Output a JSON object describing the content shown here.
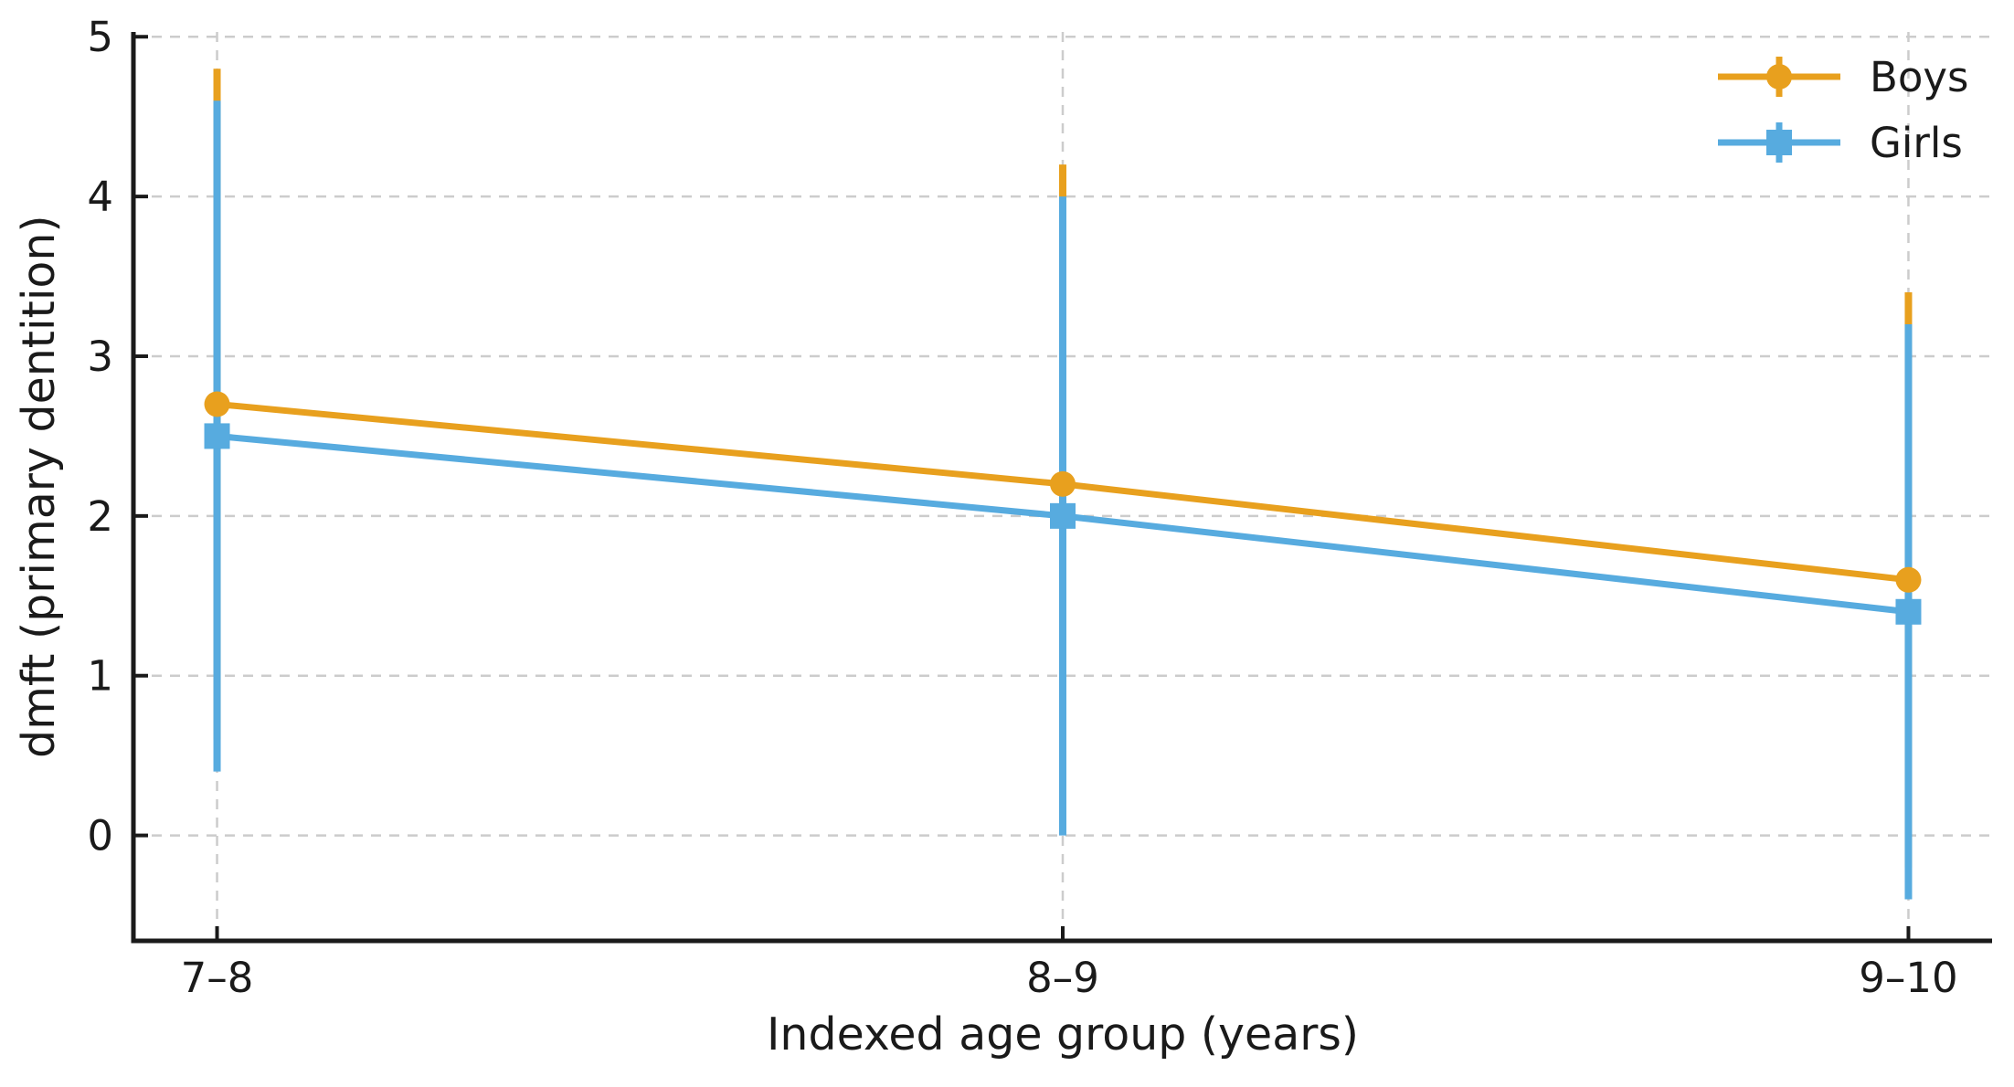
{
  "chart_data": {
    "type": "line",
    "title": "",
    "xlabel": "Indexed age group (years)",
    "ylabel": "dmft (primary dentition)",
    "categories": [
      "7–8",
      "8–9",
      "9–10"
    ],
    "y_ticks": [
      0,
      1,
      2,
      3,
      4,
      5
    ],
    "ylim": [
      -0.66,
      5.03
    ],
    "grid": "both-dashed",
    "legend_position": "upper-right",
    "series": [
      {
        "name": "Boys",
        "marker": "circle",
        "color": "#E8A01E",
        "values": [
          2.7,
          2.2,
          1.6
        ],
        "error": [
          2.1,
          2.0,
          1.8
        ]
      },
      {
        "name": "Girls",
        "marker": "square",
        "color": "#57ABDF",
        "values": [
          2.5,
          2.0,
          1.4
        ],
        "error": [
          2.1,
          2.0,
          1.8
        ]
      }
    ],
    "colors": {
      "axis": "#1a1a1a",
      "grid": "#cccccc",
      "background": "#ffffff"
    }
  }
}
